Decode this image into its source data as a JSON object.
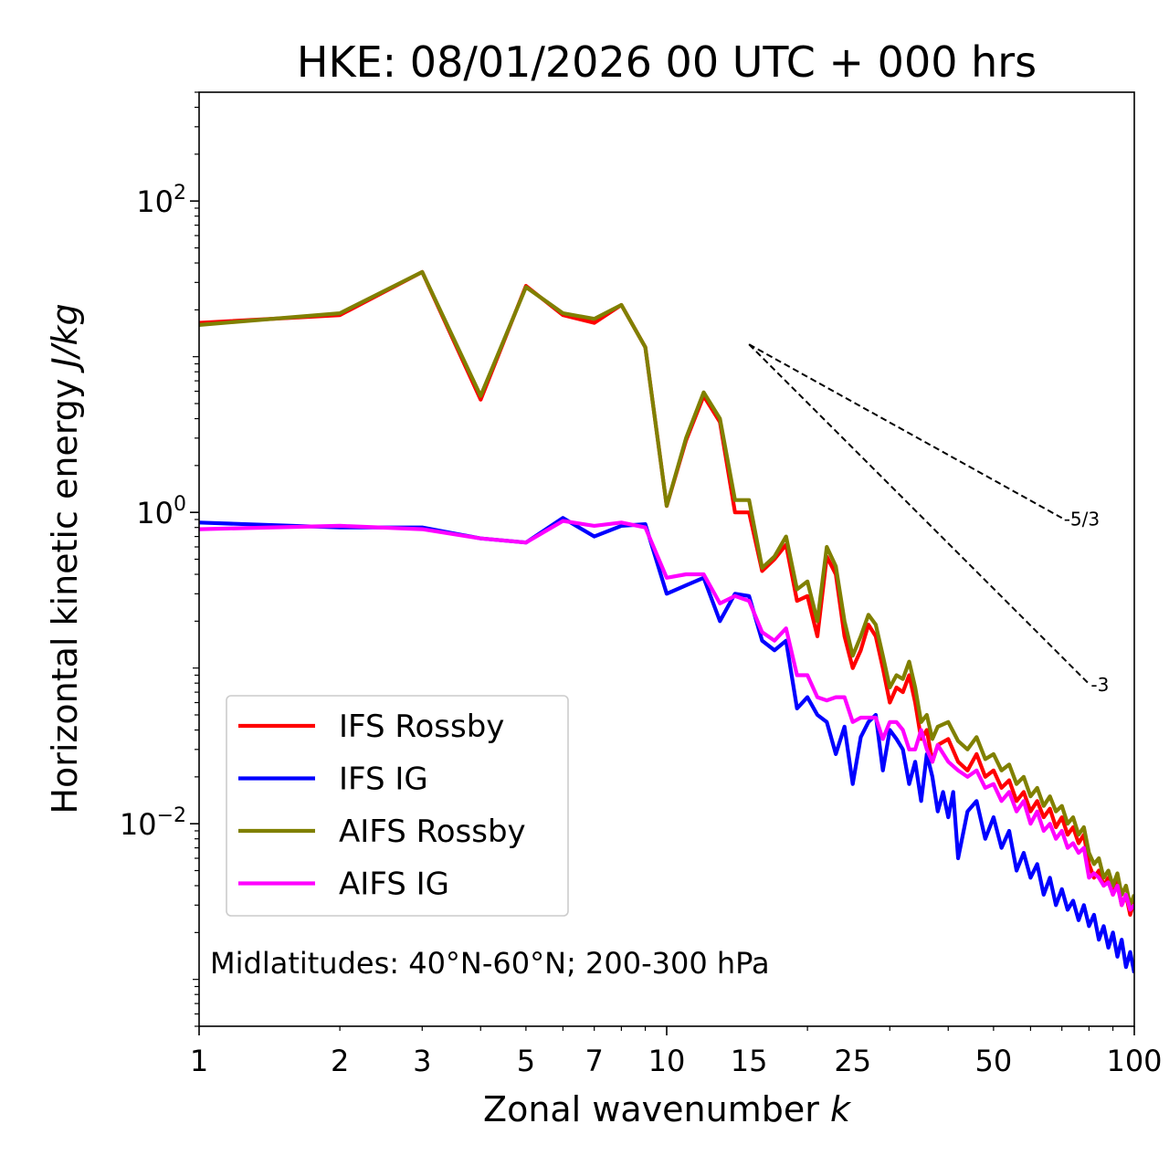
{
  "chart_data": {
    "type": "line",
    "title": "HKE: 08/01/2026 00 UTC + 000 hrs",
    "xlabel": "Zonal wavenumber k",
    "ylabel": "Horizontal kinetic energy J/kg",
    "xscale": "log",
    "yscale": "log",
    "xlim": [
      1,
      100
    ],
    "ylim": [
      0.0005,
      500
    ],
    "x_ticks": [
      1,
      2,
      3,
      5,
      7,
      10,
      15,
      25,
      50,
      100
    ],
    "y_ticks": [
      {
        "value": 100,
        "base": "10",
        "exp": "2"
      },
      {
        "value": 1,
        "base": "10",
        "exp": "0"
      },
      {
        "value": 0.01,
        "base": "10",
        "exp": "−2"
      }
    ],
    "annotation": "Midlatitudes: 40°N-60°N; 200-300 hPa",
    "legend_position": "lower-left",
    "reference_lines": [
      {
        "label": "-5/3",
        "slope": -1.6667,
        "x_start": 15,
        "y_start": 12,
        "x_end": 70
      },
      {
        "label": "-3",
        "slope": -3,
        "x_start": 15,
        "y_start": 12,
        "x_end": 80
      }
    ],
    "series": [
      {
        "name": "IFS Rossby",
        "color": "#ff0000",
        "points": [
          [
            1,
            16.5
          ],
          [
            2,
            18.5
          ],
          [
            3,
            35.0
          ],
          [
            4,
            5.3
          ],
          [
            5,
            28.5
          ],
          [
            6,
            18.5
          ],
          [
            7,
            16.5
          ],
          [
            8,
            21.5
          ],
          [
            9,
            11.5
          ],
          [
            10,
            1.1
          ],
          [
            11,
            2.9
          ],
          [
            12,
            5.6
          ],
          [
            13,
            3.8
          ],
          [
            14,
            1.0
          ],
          [
            15,
            1.0
          ],
          [
            16,
            0.42
          ],
          [
            17,
            0.5
          ],
          [
            18,
            0.62
          ],
          [
            19,
            0.27
          ],
          [
            20,
            0.29
          ],
          [
            21,
            0.16
          ],
          [
            22,
            0.52
          ],
          [
            23,
            0.4
          ],
          [
            24,
            0.16
          ],
          [
            25,
            0.1
          ],
          [
            26,
            0.13
          ],
          [
            27,
            0.19
          ],
          [
            28,
            0.16
          ],
          [
            29,
            0.1
          ],
          [
            30,
            0.06
          ],
          [
            31,
            0.075
          ],
          [
            32,
            0.07
          ],
          [
            33,
            0.09
          ],
          [
            34,
            0.06
          ],
          [
            35,
            0.035
          ],
          [
            36,
            0.04
          ],
          [
            37,
            0.025
          ],
          [
            38,
            0.032
          ],
          [
            40,
            0.035
          ],
          [
            42,
            0.025
          ],
          [
            44,
            0.022
          ],
          [
            46,
            0.028
          ],
          [
            48,
            0.02
          ],
          [
            50,
            0.022
          ],
          [
            52,
            0.017
          ],
          [
            54,
            0.019
          ],
          [
            56,
            0.014
          ],
          [
            58,
            0.016
          ],
          [
            60,
            0.012
          ],
          [
            62,
            0.014
          ],
          [
            64,
            0.011
          ],
          [
            66,
            0.0125
          ],
          [
            68,
            0.0095
          ],
          [
            70,
            0.011
          ],
          [
            72,
            0.0085
          ],
          [
            74,
            0.0095
          ],
          [
            76,
            0.0075
          ],
          [
            78,
            0.0085
          ],
          [
            80,
            0.0055
          ],
          [
            82,
            0.0045
          ],
          [
            84,
            0.005
          ],
          [
            86,
            0.004
          ],
          [
            88,
            0.0045
          ],
          [
            90,
            0.0035
          ],
          [
            92,
            0.0042
          ],
          [
            94,
            0.003
          ],
          [
            96,
            0.0035
          ],
          [
            98,
            0.0026
          ],
          [
            100,
            0.0032
          ]
        ]
      },
      {
        "name": "IFS IG",
        "color": "#0000ff",
        "points": [
          [
            1,
            0.86
          ],
          [
            2,
            0.8
          ],
          [
            3,
            0.8
          ],
          [
            4,
            0.68
          ],
          [
            5,
            0.64
          ],
          [
            6,
            0.92
          ],
          [
            7,
            0.7
          ],
          [
            8,
            0.82
          ],
          [
            9,
            0.84
          ],
          [
            10,
            0.3
          ],
          [
            11,
            0.34
          ],
          [
            12,
            0.38
          ],
          [
            13,
            0.2
          ],
          [
            14,
            0.3
          ],
          [
            15,
            0.29
          ],
          [
            16,
            0.15
          ],
          [
            17,
            0.13
          ],
          [
            18,
            0.15
          ],
          [
            19,
            0.055
          ],
          [
            20,
            0.065
          ],
          [
            21,
            0.05
          ],
          [
            22,
            0.045
          ],
          [
            23,
            0.028
          ],
          [
            24,
            0.042
          ],
          [
            25,
            0.018
          ],
          [
            26,
            0.036
          ],
          [
            27,
            0.045
          ],
          [
            28,
            0.05
          ],
          [
            29,
            0.022
          ],
          [
            30,
            0.04
          ],
          [
            31,
            0.035
          ],
          [
            32,
            0.03
          ],
          [
            33,
            0.018
          ],
          [
            34,
            0.025
          ],
          [
            35,
            0.014
          ],
          [
            36,
            0.028
          ],
          [
            37,
            0.02
          ],
          [
            38,
            0.012
          ],
          [
            39,
            0.016
          ],
          [
            40,
            0.011
          ],
          [
            41,
            0.016
          ],
          [
            42,
            0.006
          ],
          [
            44,
            0.012
          ],
          [
            46,
            0.014
          ],
          [
            48,
            0.008
          ],
          [
            50,
            0.011
          ],
          [
            52,
            0.007
          ],
          [
            54,
            0.009
          ],
          [
            56,
            0.005
          ],
          [
            58,
            0.0065
          ],
          [
            60,
            0.0045
          ],
          [
            62,
            0.0055
          ],
          [
            64,
            0.0035
          ],
          [
            66,
            0.0045
          ],
          [
            68,
            0.003
          ],
          [
            70,
            0.0038
          ],
          [
            72,
            0.0028
          ],
          [
            74,
            0.0032
          ],
          [
            76,
            0.0024
          ],
          [
            78,
            0.003
          ],
          [
            80,
            0.0022
          ],
          [
            82,
            0.0026
          ],
          [
            84,
            0.0018
          ],
          [
            86,
            0.0022
          ],
          [
            88,
            0.0016
          ],
          [
            90,
            0.002
          ],
          [
            92,
            0.0014
          ],
          [
            94,
            0.0018
          ],
          [
            96,
            0.0012
          ],
          [
            98,
            0.0015
          ],
          [
            100,
            0.0011
          ]
        ]
      },
      {
        "name": "AIFS Rossby",
        "color": "#808000",
        "points": [
          [
            1,
            16.0
          ],
          [
            2,
            19.0
          ],
          [
            3,
            35.0
          ],
          [
            4,
            5.6
          ],
          [
            5,
            28.0
          ],
          [
            6,
            19.0
          ],
          [
            7,
            17.5
          ],
          [
            8,
            21.5
          ],
          [
            9,
            11.5
          ],
          [
            10,
            1.1
          ],
          [
            11,
            3.0
          ],
          [
            12,
            5.9
          ],
          [
            13,
            4.0
          ],
          [
            14,
            1.2
          ],
          [
            15,
            1.2
          ],
          [
            16,
            0.44
          ],
          [
            17,
            0.52
          ],
          [
            18,
            0.7
          ],
          [
            19,
            0.32
          ],
          [
            20,
            0.36
          ],
          [
            21,
            0.2
          ],
          [
            22,
            0.6
          ],
          [
            23,
            0.45
          ],
          [
            24,
            0.2
          ],
          [
            25,
            0.12
          ],
          [
            26,
            0.16
          ],
          [
            27,
            0.22
          ],
          [
            28,
            0.19
          ],
          [
            29,
            0.12
          ],
          [
            30,
            0.075
          ],
          [
            31,
            0.09
          ],
          [
            32,
            0.085
          ],
          [
            33,
            0.11
          ],
          [
            34,
            0.075
          ],
          [
            35,
            0.045
          ],
          [
            36,
            0.05
          ],
          [
            37,
            0.035
          ],
          [
            38,
            0.042
          ],
          [
            40,
            0.045
          ],
          [
            42,
            0.034
          ],
          [
            44,
            0.03
          ],
          [
            46,
            0.036
          ],
          [
            48,
            0.026
          ],
          [
            50,
            0.028
          ],
          [
            52,
            0.022
          ],
          [
            54,
            0.024
          ],
          [
            56,
            0.018
          ],
          [
            58,
            0.02
          ],
          [
            60,
            0.015
          ],
          [
            62,
            0.017
          ],
          [
            64,
            0.013
          ],
          [
            66,
            0.015
          ],
          [
            68,
            0.012
          ],
          [
            70,
            0.013
          ],
          [
            72,
            0.01
          ],
          [
            74,
            0.011
          ],
          [
            76,
            0.0085
          ],
          [
            78,
            0.0095
          ],
          [
            80,
            0.0065
          ],
          [
            82,
            0.0055
          ],
          [
            84,
            0.006
          ],
          [
            86,
            0.0045
          ],
          [
            88,
            0.005
          ],
          [
            90,
            0.004
          ],
          [
            92,
            0.0048
          ],
          [
            94,
            0.0035
          ],
          [
            96,
            0.004
          ],
          [
            98,
            0.003
          ],
          [
            100,
            0.0035
          ]
        ]
      },
      {
        "name": "AIFS IG",
        "color": "#ff00ff",
        "points": [
          [
            1,
            0.78
          ],
          [
            2,
            0.82
          ],
          [
            3,
            0.78
          ],
          [
            4,
            0.68
          ],
          [
            5,
            0.64
          ],
          [
            6,
            0.88
          ],
          [
            7,
            0.82
          ],
          [
            8,
            0.86
          ],
          [
            9,
            0.8
          ],
          [
            10,
            0.38
          ],
          [
            11,
            0.4
          ],
          [
            12,
            0.4
          ],
          [
            13,
            0.26
          ],
          [
            14,
            0.29
          ],
          [
            15,
            0.27
          ],
          [
            16,
            0.17
          ],
          [
            17,
            0.15
          ],
          [
            18,
            0.18
          ],
          [
            19,
            0.09
          ],
          [
            20,
            0.09
          ],
          [
            21,
            0.065
          ],
          [
            22,
            0.062
          ],
          [
            23,
            0.065
          ],
          [
            24,
            0.065
          ],
          [
            25,
            0.045
          ],
          [
            26,
            0.048
          ],
          [
            27,
            0.048
          ],
          [
            28,
            0.048
          ],
          [
            29,
            0.035
          ],
          [
            30,
            0.045
          ],
          [
            31,
            0.045
          ],
          [
            32,
            0.04
          ],
          [
            33,
            0.03
          ],
          [
            34,
            0.03
          ],
          [
            35,
            0.04
          ],
          [
            36,
            0.03
          ],
          [
            37,
            0.025
          ],
          [
            38,
            0.032
          ],
          [
            40,
            0.025
          ],
          [
            42,
            0.022
          ],
          [
            44,
            0.02
          ],
          [
            46,
            0.022
          ],
          [
            48,
            0.017
          ],
          [
            50,
            0.018
          ],
          [
            52,
            0.014
          ],
          [
            54,
            0.016
          ],
          [
            56,
            0.012
          ],
          [
            58,
            0.014
          ],
          [
            60,
            0.01
          ],
          [
            62,
            0.012
          ],
          [
            64,
            0.009
          ],
          [
            66,
            0.01
          ],
          [
            68,
            0.008
          ],
          [
            70,
            0.009
          ],
          [
            72,
            0.007
          ],
          [
            74,
            0.0075
          ],
          [
            76,
            0.0065
          ],
          [
            78,
            0.007
          ],
          [
            80,
            0.0045
          ],
          [
            82,
            0.0048
          ],
          [
            84,
            0.0045
          ],
          [
            86,
            0.004
          ],
          [
            88,
            0.0042
          ],
          [
            90,
            0.0035
          ],
          [
            92,
            0.004
          ],
          [
            94,
            0.003
          ],
          [
            96,
            0.0035
          ],
          [
            98,
            0.0028
          ],
          [
            100,
            0.003
          ]
        ]
      }
    ]
  }
}
